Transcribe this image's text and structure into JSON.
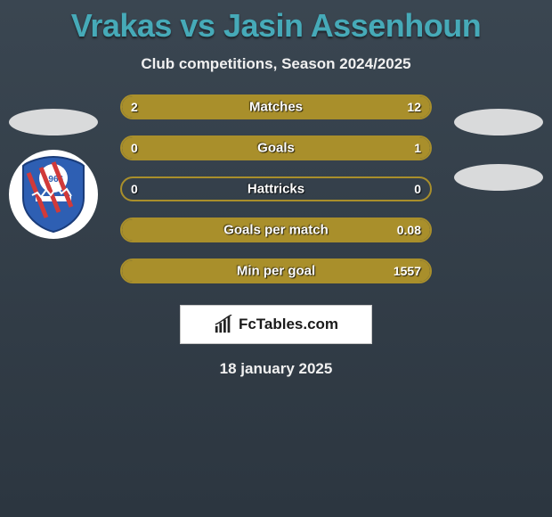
{
  "title": "Vrakas vs Jasin Assenhoun",
  "subtitle": "Club competitions, Season 2024/2025",
  "date": "18 january 2025",
  "brand": "FcTables.com",
  "colors": {
    "title_color": "#46aab8",
    "bar_border": "#a98f2b",
    "bar_fill": "#a98f2b",
    "badge_blue": "#2e5fb3",
    "badge_red": "#d13a3a"
  },
  "stats": [
    {
      "label": "Matches",
      "left_val": "2",
      "right_val": "12",
      "left_pct": 14,
      "right_pct": 86
    },
    {
      "label": "Goals",
      "left_val": "0",
      "right_val": "1",
      "left_pct": 0,
      "right_pct": 100
    },
    {
      "label": "Hattricks",
      "left_val": "0",
      "right_val": "0",
      "left_pct": 0,
      "right_pct": 0
    },
    {
      "label": "Goals per match",
      "left_val": "",
      "right_val": "0.08",
      "left_pct": 0,
      "right_pct": 100
    },
    {
      "label": "Min per goal",
      "left_val": "",
      "right_val": "1557",
      "left_pct": 0,
      "right_pct": 100
    }
  ],
  "left_player": {
    "badge_year": "1966"
  }
}
